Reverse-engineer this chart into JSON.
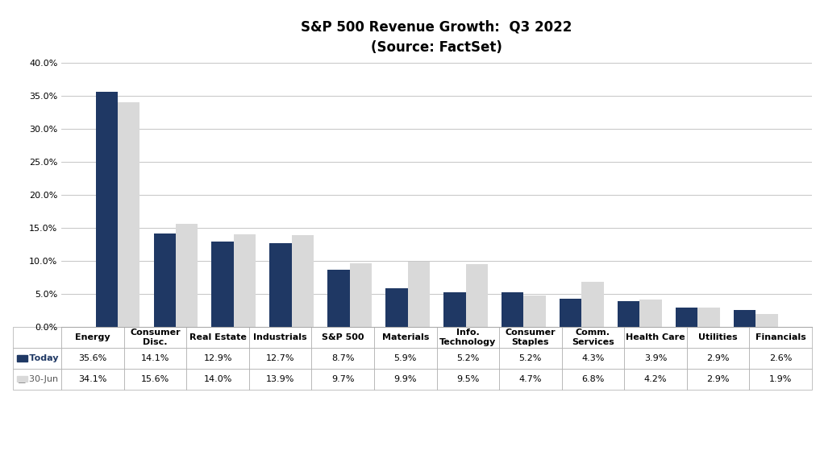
{
  "title_line1": "S&P 500 Revenue Growth:  Q3 2022",
  "title_line2": "(Source: FactSet)",
  "categories": [
    "Energy",
    "Consumer\nDisc.",
    "Real Estate",
    "Industrials",
    "S&P 500",
    "Materials",
    "Info.\nTechnology",
    "Consumer\nStaples",
    "Comm.\nServices",
    "Health Care",
    "Utilities",
    "Financials"
  ],
  "today_values": [
    35.6,
    14.1,
    12.9,
    12.7,
    8.7,
    5.9,
    5.2,
    5.2,
    4.3,
    3.9,
    2.9,
    2.6
  ],
  "jun_values": [
    34.1,
    15.6,
    14.0,
    13.9,
    9.7,
    9.9,
    9.5,
    4.7,
    6.8,
    4.2,
    2.9,
    1.9
  ],
  "today_labels": [
    "35.6%",
    "14.1%",
    "12.9%",
    "12.7%",
    "8.7%",
    "5.9%",
    "5.2%",
    "5.2%",
    "4.3%",
    "3.9%",
    "2.9%",
    "2.6%"
  ],
  "jun_labels": [
    "34.1%",
    "15.6%",
    "14.0%",
    "13.9%",
    "9.7%",
    "9.9%",
    "9.5%",
    "4.7%",
    "6.8%",
    "4.2%",
    "2.9%",
    "1.9%"
  ],
  "today_color": "#1f3864",
  "jun_color": "#d9d9d9",
  "ylim": [
    0,
    40.0
  ],
  "yticks": [
    0.0,
    5.0,
    10.0,
    15.0,
    20.0,
    25.0,
    30.0,
    35.0,
    40.0
  ],
  "bar_width": 0.38,
  "legend_today": "Today",
  "legend_jun": "30-Jun",
  "background_color": "#ffffff",
  "grid_color": "#bbbbbb",
  "title_fontsize": 12,
  "subtitle_fontsize": 11,
  "tick_fontsize": 8,
  "table_fontsize": 8
}
